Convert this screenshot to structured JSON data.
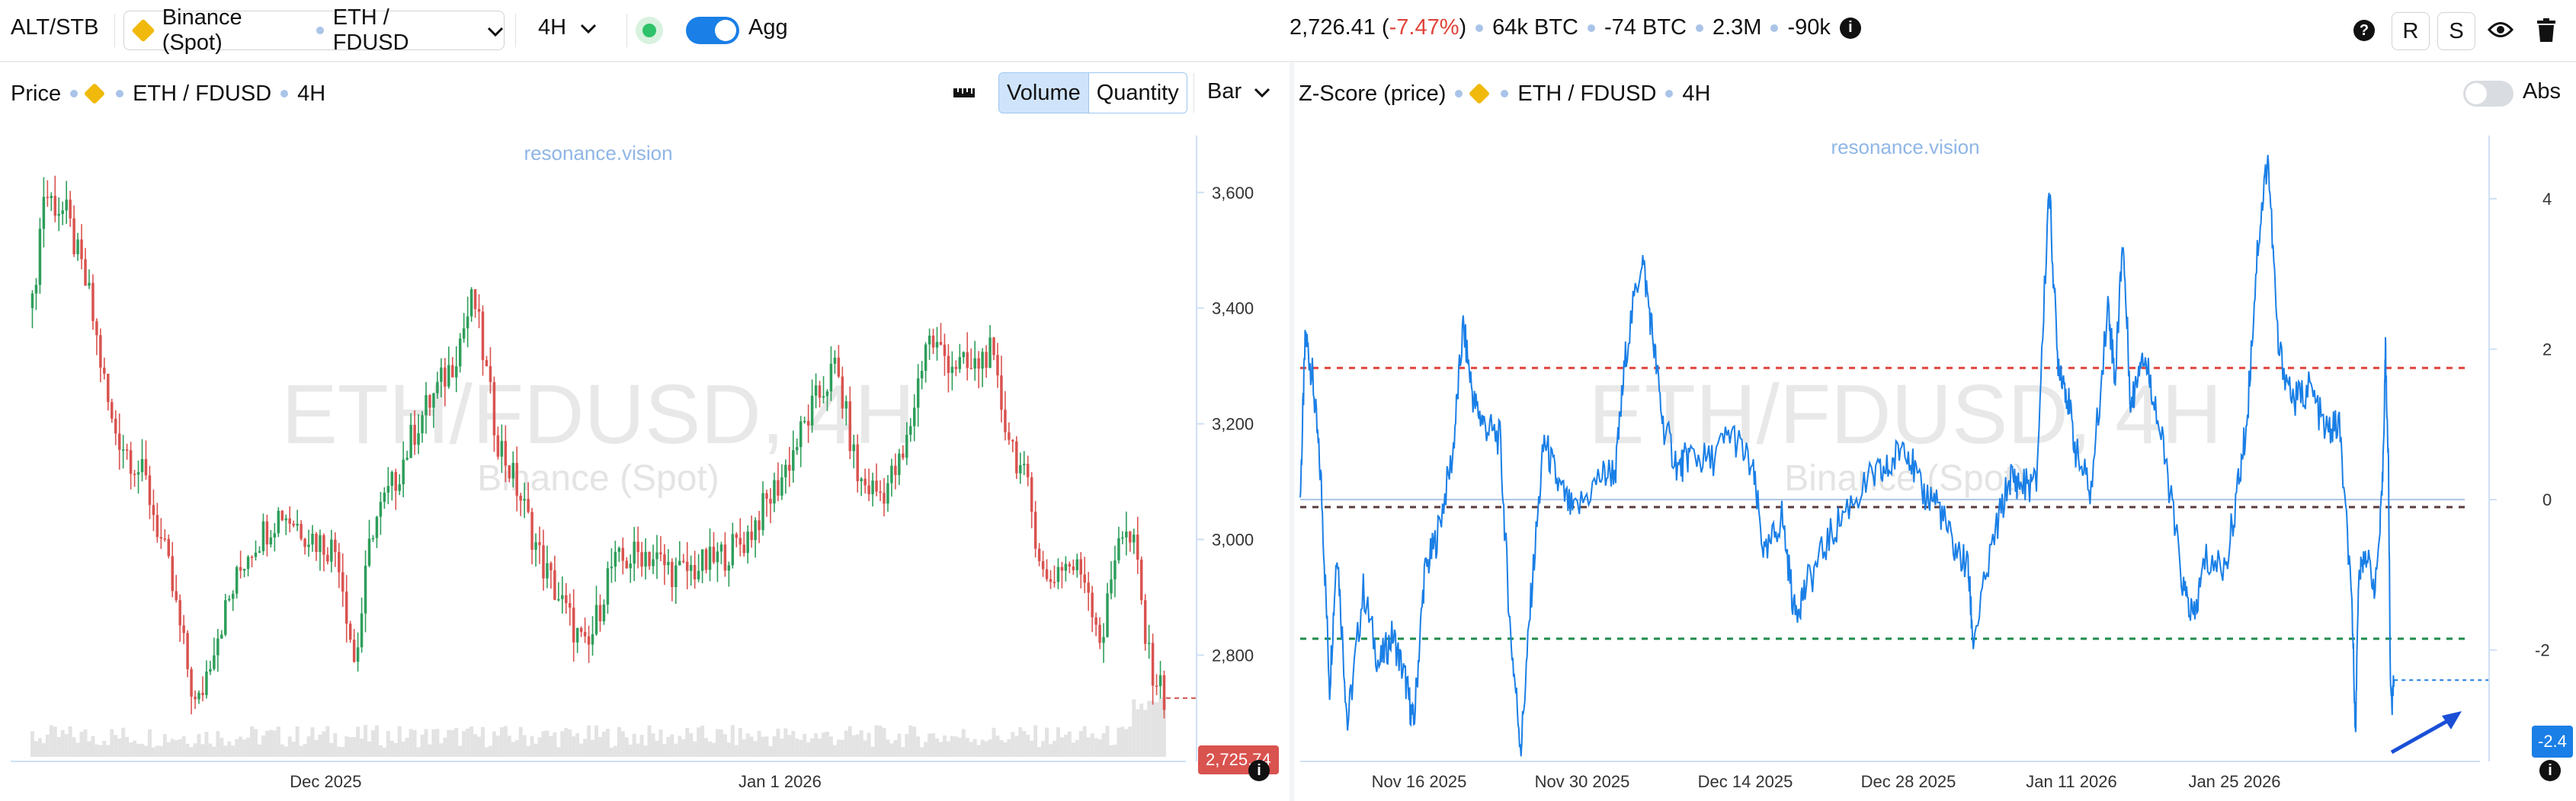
{
  "topbar": {
    "mode": "ALT/STB",
    "exchange": "Binance (Spot)",
    "pair": "ETH / FDUSD",
    "interval": "4H",
    "agg_label": "Agg",
    "price": "2,726.41",
    "change_open": " (",
    "change": "-7.47%",
    "change_close": ")",
    "vol_btc": "64k BTC",
    "delta_btc": "-74 BTC",
    "trades": "2.3M",
    "oi": "-90k",
    "help_label": "?",
    "r_label": "R",
    "s_label": "S"
  },
  "price_panel": {
    "title": "Price",
    "pair": "ETH / FDUSD",
    "interval": "4H",
    "seg_volume": "Volume",
    "seg_quantity": "Quantity",
    "chart_type": "Bar",
    "watermark_site": "resonance.vision",
    "watermark_pair": "ETH/FDUSD, 4H",
    "watermark_exchange": "Binance (Spot)",
    "current_price_label": "2,725.74",
    "info_label": "i"
  },
  "zscore_panel": {
    "title": "Z-Score (price)",
    "pair": "ETH / FDUSD",
    "interval": "4H",
    "abs_label": "Abs",
    "watermark_site": "resonance.vision",
    "watermark_pair": "ETH/FDUSD, 4H",
    "watermark_exchange": "Binance (Spot)",
    "current_value_label": "-2.4",
    "info_label": "i"
  },
  "colors": {
    "up": "#2e9e5b",
    "down": "#d9534f",
    "zline": "#1a7fe6",
    "upper_band": "#e0433a",
    "lower_band": "#1f8a4c",
    "mid_band": "#5a3a3a",
    "zero_line": "#a9c4e8"
  },
  "chart_data": [
    {
      "type": "candlestick",
      "title": "Price",
      "series_label": "ETH / FDUSD 4H",
      "y_ticks": [
        "3,600",
        "3,400",
        "3,200",
        "3,000",
        "2,800"
      ],
      "y_tick_values": [
        3600,
        3400,
        3200,
        3000,
        2800
      ],
      "ylim": [
        2640,
        3680
      ],
      "x_ticks": [
        "Dec 2025",
        "Jan 1 2026"
      ],
      "close_path": [
        {
          "t": 0.0,
          "v": 3400
        },
        {
          "t": 0.01,
          "v": 3600
        },
        {
          "t": 0.03,
          "v": 3560
        },
        {
          "t": 0.05,
          "v": 3420
        },
        {
          "t": 0.07,
          "v": 3200
        },
        {
          "t": 0.1,
          "v": 3100
        },
        {
          "t": 0.12,
          "v": 2950
        },
        {
          "t": 0.145,
          "v": 2700
        },
        {
          "t": 0.16,
          "v": 2820
        },
        {
          "t": 0.19,
          "v": 2980
        },
        {
          "t": 0.22,
          "v": 3050
        },
        {
          "t": 0.25,
          "v": 3000
        },
        {
          "t": 0.27,
          "v": 2980
        },
        {
          "t": 0.285,
          "v": 2780
        },
        {
          "t": 0.3,
          "v": 3020
        },
        {
          "t": 0.32,
          "v": 3100
        },
        {
          "t": 0.34,
          "v": 3200
        },
        {
          "t": 0.37,
          "v": 3300
        },
        {
          "t": 0.39,
          "v": 3420
        },
        {
          "t": 0.41,
          "v": 3180
        },
        {
          "t": 0.43,
          "v": 3080
        },
        {
          "t": 0.45,
          "v": 2960
        },
        {
          "t": 0.47,
          "v": 2880
        },
        {
          "t": 0.49,
          "v": 2800
        },
        {
          "t": 0.51,
          "v": 2950
        },
        {
          "t": 0.54,
          "v": 2980
        },
        {
          "t": 0.57,
          "v": 2940
        },
        {
          "t": 0.6,
          "v": 2960
        },
        {
          "t": 0.63,
          "v": 3000
        },
        {
          "t": 0.66,
          "v": 3100
        },
        {
          "t": 0.69,
          "v": 3230
        },
        {
          "t": 0.71,
          "v": 3300
        },
        {
          "t": 0.73,
          "v": 3100
        },
        {
          "t": 0.75,
          "v": 3080
        },
        {
          "t": 0.77,
          "v": 3140
        },
        {
          "t": 0.79,
          "v": 3350
        },
        {
          "t": 0.81,
          "v": 3310
        },
        {
          "t": 0.83,
          "v": 3290
        },
        {
          "t": 0.845,
          "v": 3330
        },
        {
          "t": 0.86,
          "v": 3200
        },
        {
          "t": 0.88,
          "v": 3080
        },
        {
          "t": 0.895,
          "v": 2920
        },
        {
          "t": 0.91,
          "v": 2960
        },
        {
          "t": 0.93,
          "v": 2940
        },
        {
          "t": 0.945,
          "v": 2820
        },
        {
          "t": 0.96,
          "v": 3020
        },
        {
          "t": 0.975,
          "v": 2980
        },
        {
          "t": 0.985,
          "v": 2800
        },
        {
          "t": 1.0,
          "v": 2726
        }
      ],
      "last_price": 2725.74
    },
    {
      "type": "line",
      "title": "Z-Score (price)",
      "series_label": "ETH / FDUSD 4H",
      "y_ticks": [
        "4",
        "2",
        "0",
        "-2"
      ],
      "y_tick_values": [
        4,
        2,
        0,
        -2
      ],
      "ylim": [
        -3.4,
        4.8
      ],
      "bands": {
        "upper": 1.75,
        "mid": -0.1,
        "lower": -1.85
      },
      "x_ticks": [
        "Nov 16 2025",
        "Nov 30 2025",
        "Dec 14 2025",
        "Dec 28 2025",
        "Jan 11 2026",
        "Jan 25 2026"
      ],
      "points": [
        [
          0.0,
          0.0
        ],
        [
          0.005,
          2.2
        ],
        [
          0.012,
          1.6
        ],
        [
          0.02,
          0.2
        ],
        [
          0.028,
          -2.5
        ],
        [
          0.035,
          -0.6
        ],
        [
          0.045,
          -3.0
        ],
        [
          0.06,
          -1.2
        ],
        [
          0.075,
          -2.2
        ],
        [
          0.088,
          -1.8
        ],
        [
          0.1,
          -2.4
        ],
        [
          0.108,
          -3.0
        ],
        [
          0.118,
          -1.0
        ],
        [
          0.13,
          -0.5
        ],
        [
          0.145,
          0.6
        ],
        [
          0.155,
          2.3
        ],
        [
          0.165,
          1.3
        ],
        [
          0.175,
          1.0
        ],
        [
          0.19,
          0.8
        ],
        [
          0.2,
          -1.8
        ],
        [
          0.21,
          -3.3
        ],
        [
          0.22,
          -1.2
        ],
        [
          0.232,
          0.8
        ],
        [
          0.245,
          0.2
        ],
        [
          0.26,
          -0.2
        ],
        [
          0.285,
          0.3
        ],
        [
          0.3,
          0.4
        ],
        [
          0.31,
          2.0
        ],
        [
          0.325,
          3.25
        ],
        [
          0.335,
          2.2
        ],
        [
          0.345,
          1.0
        ],
        [
          0.36,
          0.4
        ],
        [
          0.37,
          0.6
        ],
        [
          0.39,
          0.5
        ],
        [
          0.41,
          0.9
        ],
        [
          0.43,
          0.4
        ],
        [
          0.442,
          -0.8
        ],
        [
          0.458,
          -0.2
        ],
        [
          0.47,
          -1.5
        ],
        [
          0.48,
          -1.2
        ],
        [
          0.5,
          -0.6
        ],
        [
          0.52,
          -0.1
        ],
        [
          0.545,
          0.3
        ],
        [
          0.56,
          0.4
        ],
        [
          0.575,
          0.8
        ],
        [
          0.59,
          0.1
        ],
        [
          0.605,
          0.0
        ],
        [
          0.62,
          -0.6
        ],
        [
          0.635,
          -0.9
        ],
        [
          0.64,
          -1.9
        ],
        [
          0.66,
          -0.5
        ],
        [
          0.675,
          0.3
        ],
        [
          0.685,
          0.2
        ],
        [
          0.7,
          0.2
        ],
        [
          0.712,
          4.2
        ],
        [
          0.72,
          1.9
        ],
        [
          0.728,
          1.5
        ],
        [
          0.738,
          0.6
        ],
        [
          0.752,
          0.1
        ],
        [
          0.768,
          2.6
        ],
        [
          0.775,
          1.6
        ],
        [
          0.782,
          3.5
        ],
        [
          0.79,
          1.2
        ],
        [
          0.8,
          2.0
        ],
        [
          0.81,
          1.5
        ],
        [
          0.825,
          0.3
        ],
        [
          0.84,
          -1.2
        ],
        [
          0.85,
          -1.6
        ],
        [
          0.86,
          -0.8
        ],
        [
          0.88,
          -0.9
        ],
        [
          0.892,
          0.2
        ],
        [
          0.9,
          1.0
        ],
        [
          0.91,
          3.3
        ],
        [
          0.92,
          4.6
        ],
        [
          0.93,
          2.0
        ],
        [
          0.945,
          1.3
        ],
        [
          0.96,
          1.5
        ],
        [
          0.975,
          0.9
        ],
        [
          0.988,
          1.0
        ],
        [
          1.0,
          -1.4
        ]
      ],
      "tail_points": [
        [
          0.0,
          -1.4
        ],
        [
          0.015,
          -2.2
        ],
        [
          0.03,
          -3.2
        ],
        [
          0.045,
          -1.6
        ],
        [
          0.06,
          -1.0
        ],
        [
          0.08,
          -0.9
        ],
        [
          0.11,
          -0.7
        ],
        [
          0.15,
          -0.9
        ],
        [
          0.19,
          -1.2
        ],
        [
          0.23,
          -0.4
        ],
        [
          0.25,
          0.2
        ],
        [
          0.265,
          1.2
        ],
        [
          0.275,
          2.0
        ],
        [
          0.285,
          1.3
        ],
        [
          0.3,
          0.4
        ],
        [
          0.315,
          -2.4
        ],
        [
          0.33,
          -2.7
        ],
        [
          0.345,
          -2.4
        ]
      ],
      "current_value": -2.4
    }
  ]
}
